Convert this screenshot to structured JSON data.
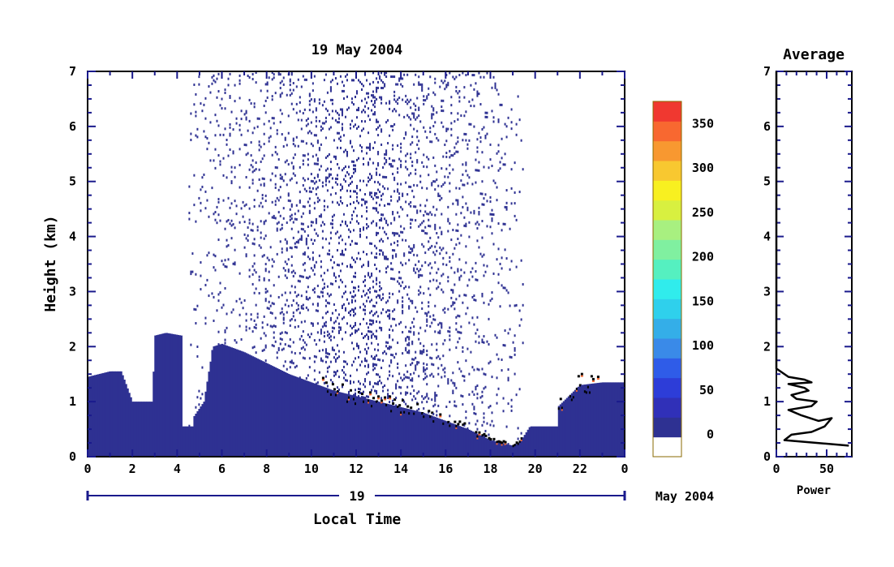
{
  "chart_data": [
    {
      "type": "heatmap",
      "title": "19 May 2004",
      "xlabel": "Local Time",
      "ylabel": "Height (km)",
      "xlim": [
        0,
        24
      ],
      "ylim": [
        0,
        7
      ],
      "x_ticks": [
        "0",
        "2",
        "4",
        "6",
        "8",
        "10",
        "12",
        "14",
        "16",
        "18",
        "20",
        "22",
        "0"
      ],
      "y_ticks": [
        "0",
        "1",
        "2",
        "3",
        "4",
        "5",
        "6",
        "7"
      ],
      "date_bar": {
        "day": "19",
        "month_year": "May 2004"
      },
      "grid": false,
      "boundary_layer_top_km": [
        [
          0,
          1.45
        ],
        [
          0.5,
          1.5
        ],
        [
          1,
          1.55
        ],
        [
          1.5,
          1.55
        ],
        [
          2,
          1.0
        ],
        [
          2.2,
          1.0
        ],
        [
          2.9,
          1.0
        ],
        [
          3,
          2.2
        ],
        [
          3.5,
          2.25
        ],
        [
          4.2,
          2.2
        ],
        [
          4.7,
          0.7
        ],
        [
          5.2,
          1.0
        ],
        [
          5.6,
          2.0
        ],
        [
          6,
          2.05
        ],
        [
          7,
          1.9
        ],
        [
          8,
          1.7
        ],
        [
          9,
          1.5
        ],
        [
          10,
          1.35
        ],
        [
          11,
          1.2
        ],
        [
          12,
          1.1
        ],
        [
          13,
          1.0
        ],
        [
          14,
          0.9
        ],
        [
          15,
          0.8
        ],
        [
          16,
          0.65
        ],
        [
          17,
          0.5
        ],
        [
          18,
          0.3
        ],
        [
          19,
          0.2
        ],
        [
          19.3,
          0.25
        ],
        [
          20,
          0.7
        ],
        [
          21,
          0.9
        ],
        [
          22,
          1.3
        ],
        [
          23,
          1.35
        ],
        [
          24,
          1.35
        ]
      ],
      "data_gaps_hours": [
        [
          4.25,
          4.75
        ],
        [
          19.4,
          21.0
        ]
      ]
    },
    {
      "type": "colorbar",
      "tick_labels": [
        "0",
        "50",
        "100",
        "150",
        "200",
        "250",
        "300",
        "350"
      ],
      "range": [
        -25,
        375
      ],
      "colors": [
        "#ffffff",
        "#2e3192",
        "#3030b8",
        "#2d3dd8",
        "#2f5ce8",
        "#3a8ae8",
        "#34aee8",
        "#2fd0ec",
        "#30ecec",
        "#55f0c0",
        "#80f0a0",
        "#a8f080",
        "#d8f040",
        "#f8f020",
        "#f8c830",
        "#f89830",
        "#f86830",
        "#f03830"
      ]
    },
    {
      "type": "line",
      "title": "Average",
      "xlabel": "Power",
      "ylabel": "",
      "xlim": [
        0,
        75
      ],
      "ylim": [
        0,
        7
      ],
      "x_ticks": [
        "0",
        "50"
      ],
      "y_ticks": [
        "0",
        "1",
        "2",
        "3",
        "4",
        "5",
        "6",
        "7"
      ],
      "series": [
        {
          "x": [
            72,
            40,
            8,
            15,
            35,
            48,
            55,
            42,
            25,
            12,
            35,
            40,
            20,
            15,
            32,
            28,
            12,
            35,
            28,
            12,
            0,
            0
          ],
          "y": [
            0.2,
            0.25,
            0.3,
            0.4,
            0.45,
            0.55,
            0.7,
            0.65,
            0.75,
            0.85,
            0.92,
            1.0,
            1.05,
            1.12,
            1.2,
            1.25,
            1.32,
            1.35,
            1.4,
            1.45,
            1.6,
            7.0
          ]
        }
      ]
    }
  ]
}
